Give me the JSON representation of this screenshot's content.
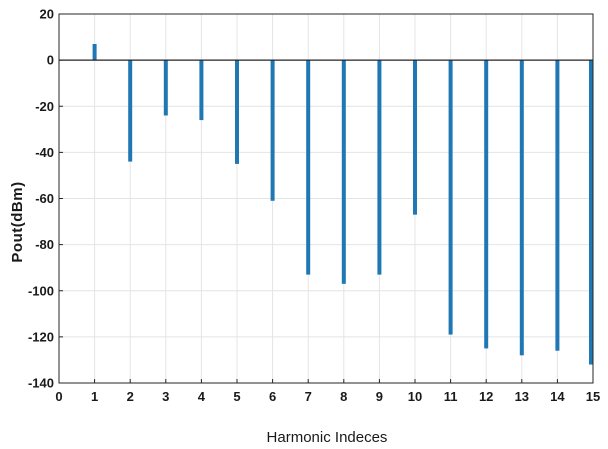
{
  "chart_data": {
    "type": "bar",
    "style": "stem",
    "title": "",
    "xlabel": "Harmonic Indeces",
    "ylabel": "Pout(dBm)",
    "x": [
      1,
      2,
      3,
      4,
      5,
      6,
      7,
      8,
      9,
      10,
      11,
      12,
      13,
      14,
      15
    ],
    "values": [
      7,
      -44,
      -24,
      -26,
      -45,
      -61,
      -93,
      -97,
      -93,
      -67,
      -119,
      -125,
      -128,
      -126,
      -132
    ],
    "xlim": [
      0,
      15
    ],
    "ylim": [
      -140,
      20
    ],
    "xticks": [
      "0",
      "1",
      "2",
      "3",
      "4",
      "5",
      "6",
      "7",
      "8",
      "9",
      "10",
      "11",
      "12",
      "13",
      "14",
      "15"
    ],
    "yticks": [
      "20",
      "0",
      "-20",
      "-40",
      "-60",
      "-80",
      "-100",
      "-120",
      "-140"
    ],
    "grid": true,
    "bar_color": "#1f77b4"
  }
}
